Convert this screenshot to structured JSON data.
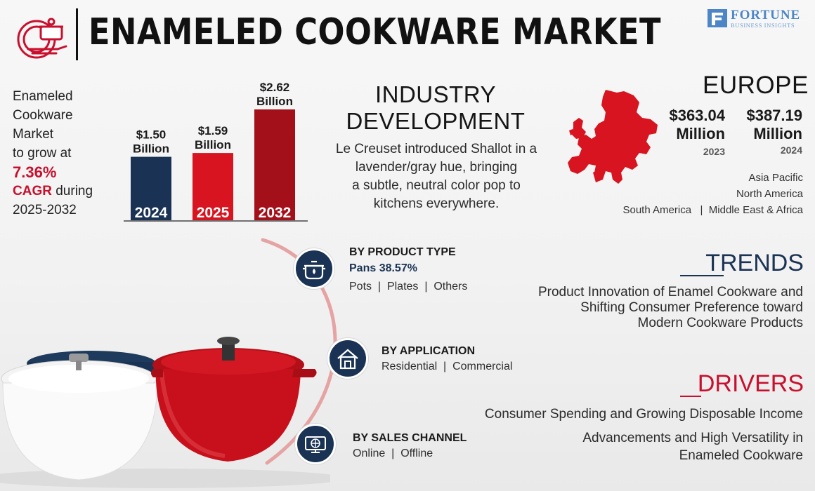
{
  "header": {
    "title": "ENAMELED COOKWARE MARKET",
    "brand_name": "FORTUNE",
    "brand_sub": "BUSINESS INSIGHTS"
  },
  "growth": {
    "line1": "Enameled",
    "line2": "Cookware",
    "line3": "Market",
    "line4": "to grow at",
    "cagr_value": "7.36%",
    "cagr_word": "CAGR",
    "during": " during",
    "period": "2025-2032"
  },
  "chart_data": {
    "type": "bar",
    "categories": [
      "2024",
      "2025",
      "2032"
    ],
    "values": [
      1.5,
      1.59,
      2.62
    ],
    "value_labels": [
      [
        "$1.50",
        "Billion"
      ],
      [
        "$1.59",
        "Billion"
      ],
      [
        "$2.62",
        "Billion"
      ]
    ],
    "colors": [
      "#1a3354",
      "#d7141f",
      "#a3101a"
    ],
    "unit": "USD Billion",
    "ylim": [
      0,
      2.62
    ]
  },
  "industry": {
    "title_line1": "INDUSTRY",
    "title_line2": "DEVELOPMENT",
    "body": [
      "Le Creuset introduced Shallot in a",
      "lavender/gray hue, bringing",
      "a subtle, neutral color pop to",
      "kitchens everywhere."
    ]
  },
  "region": {
    "name": "EUROPE",
    "values": [
      {
        "amount": "$363.04",
        "unit": "Million",
        "year": "2023"
      },
      {
        "amount": "$387.19",
        "unit": "Million",
        "year": "2024"
      }
    ],
    "others_line1": "Asia Pacific",
    "others_line2": "North America",
    "others_line3": "South America   |  Middle East & Africa",
    "map_color": "#d7141f"
  },
  "segments": {
    "product": {
      "title": "BY PRODUCT TYPE",
      "lead": "Pans 38.57%",
      "others": "Pots  |  Plates  |  Others",
      "icon": "pot-icon"
    },
    "application": {
      "title": "BY APPLICATION",
      "body": "Residential  |  Commercial",
      "icon": "house-icon"
    },
    "sales": {
      "title": "BY SALES CHANNEL",
      "body": "Online  |  Offline",
      "icon": "online-globe-icon"
    }
  },
  "trends": {
    "title": "TRENDS",
    "body": [
      "Product Innovation of Enamel Cookware and",
      "Shifting Consumer Preference toward",
      "Modern Cookware Products"
    ]
  },
  "drivers": {
    "title": "DRIVERS",
    "item1": "Consumer Spending and Growing Disposable Income",
    "item2_line1": "Advancements and High Versatility in",
    "item2_line2": "Enameled Cookware"
  },
  "colors": {
    "navy": "#1a3354",
    "red": "#c8102e",
    "brand_blue": "#4d86c6"
  }
}
